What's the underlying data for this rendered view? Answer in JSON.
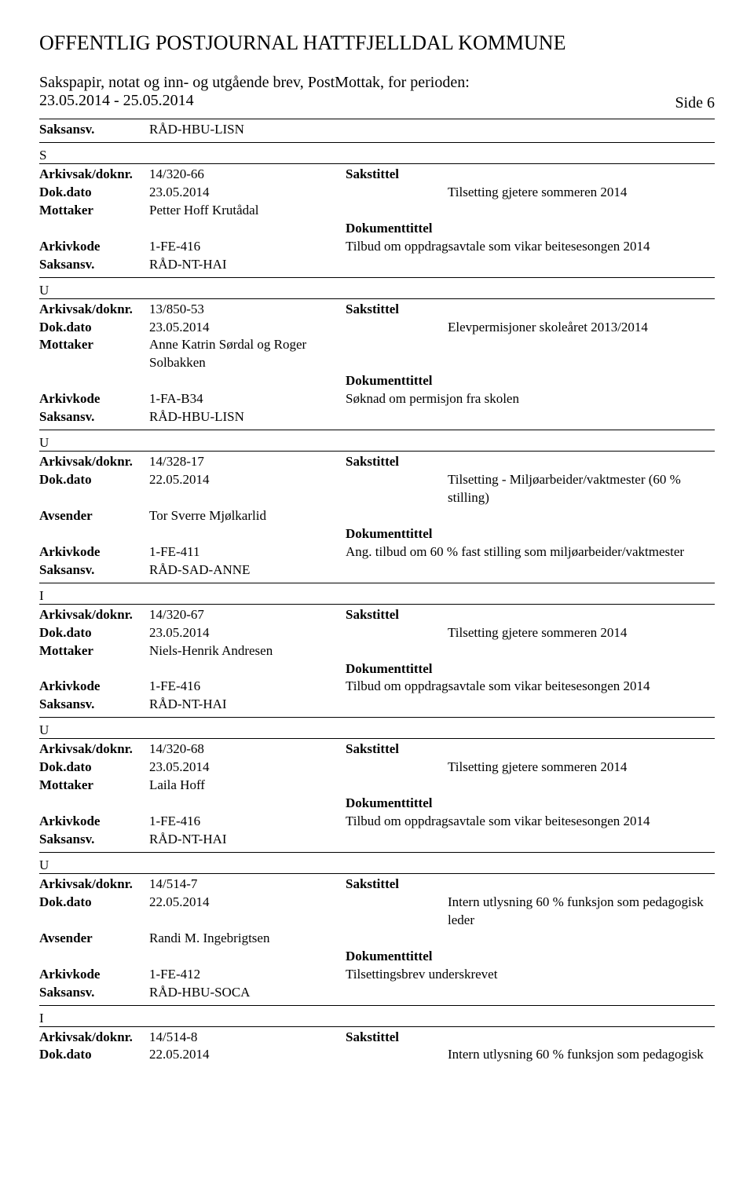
{
  "header": {
    "title": "OFFENTLIG POSTJOURNAL HATTFJELLDAL KOMMUNE",
    "subtitle": "Sakspapir, notat og inn- og utgående brev, PostMottak, for perioden:",
    "period": "23.05.2014 - 25.05.2014",
    "side_label": "Side 6"
  },
  "labels": {
    "arkivsak": "Arkivsak/doknr.",
    "dokdato": "Dok.dato",
    "mottaker": "Mottaker",
    "avsender": "Avsender",
    "arkivkode": "Arkivkode",
    "saksansv": "Saksansv.",
    "sakstittel": "Sakstittel",
    "dokumenttittel": "Dokumenttittel"
  },
  "top_saksansv": "RÅD-HBU-LISN",
  "records": [
    {
      "type": "S",
      "arkivsak": "14/320-66",
      "dokdato": "23.05.2014",
      "party_label": "Mottaker",
      "party": "Petter Hoff Krutådal",
      "arkivkode": "1-FE-416",
      "saksansv": "RÅD-NT-HAI",
      "sakstittel": "Tilsetting gjetere sommeren 2014",
      "doktittel": "Tilbud om oppdragsavtale som vikar beitesesongen 2014"
    },
    {
      "type": "U",
      "arkivsak": "13/850-53",
      "dokdato": "23.05.2014",
      "party_label": "Mottaker",
      "party": "Anne Katrin Sørdal og Roger Solbakken",
      "arkivkode": "1-FA-B34",
      "saksansv": "RÅD-HBU-LISN",
      "sakstittel": "Elevpermisjoner skoleåret 2013/2014",
      "doktittel": "Søknad om permisjon fra skolen"
    },
    {
      "type": "U",
      "arkivsak": "14/328-17",
      "dokdato": "22.05.2014",
      "party_label": "Avsender",
      "party": "Tor Sverre Mjølkarlid",
      "arkivkode": "1-FE-411",
      "saksansv": "RÅD-SAD-ANNE",
      "sakstittel": "Tilsetting - Miljøarbeider/vaktmester (60 % stilling)",
      "doktittel": "Ang. tilbud om 60 % fast stilling som miljøarbeider/vaktmester"
    },
    {
      "type": "I",
      "arkivsak": "14/320-67",
      "dokdato": "23.05.2014",
      "party_label": "Mottaker",
      "party": "Niels-Henrik Andresen",
      "arkivkode": "1-FE-416",
      "saksansv": "RÅD-NT-HAI",
      "sakstittel": "Tilsetting gjetere sommeren 2014",
      "doktittel": "Tilbud om oppdragsavtale som vikar beitesesongen 2014"
    },
    {
      "type": "U",
      "arkivsak": "14/320-68",
      "dokdato": "23.05.2014",
      "party_label": "Mottaker",
      "party": "Laila Hoff",
      "arkivkode": "1-FE-416",
      "saksansv": "RÅD-NT-HAI",
      "sakstittel": "Tilsetting gjetere sommeren 2014",
      "doktittel": "Tilbud om oppdragsavtale som vikar beitesesongen 2014"
    },
    {
      "type": "U",
      "arkivsak": "14/514-7",
      "dokdato": "22.05.2014",
      "party_label": "Avsender",
      "party": "Randi M. Ingebrigtsen",
      "arkivkode": "1-FE-412",
      "saksansv": "RÅD-HBU-SOCA",
      "sakstittel": "Intern utlysning 60 % funksjon som pedagogisk leder",
      "doktittel": "Tilsettingsbrev underskrevet"
    }
  ],
  "tail": {
    "type": "I",
    "arkivsak": "14/514-8",
    "dokdato": "22.05.2014",
    "sakstittel": "Intern utlysning 60 % funksjon som pedagogisk"
  }
}
